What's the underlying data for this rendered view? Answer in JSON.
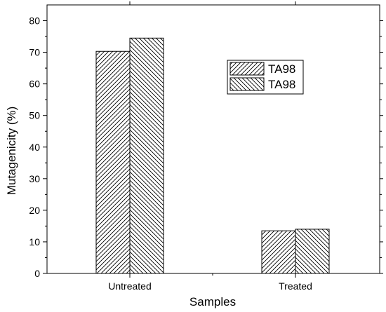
{
  "chart_data": {
    "type": "bar",
    "title": "",
    "xlabel": "Samples",
    "ylabel": "Mutagenicity (%)",
    "ylim": [
      0,
      85
    ],
    "yticks": [
      0,
      10,
      20,
      30,
      40,
      50,
      60,
      70,
      80
    ],
    "categories": [
      "Untreated",
      "Treated"
    ],
    "series": [
      {
        "name": "TA98",
        "values": [
          70.3,
          13.5
        ],
        "hatch": "diagonal-up"
      },
      {
        "name": "TA98",
        "values": [
          74.5,
          14.0
        ],
        "hatch": "diagonal-down"
      }
    ],
    "grid": false,
    "legend_position": "top-right"
  },
  "colors": {
    "bar_fill": "#ffffff",
    "stroke": "#000000",
    "background": "#ffffff"
  }
}
